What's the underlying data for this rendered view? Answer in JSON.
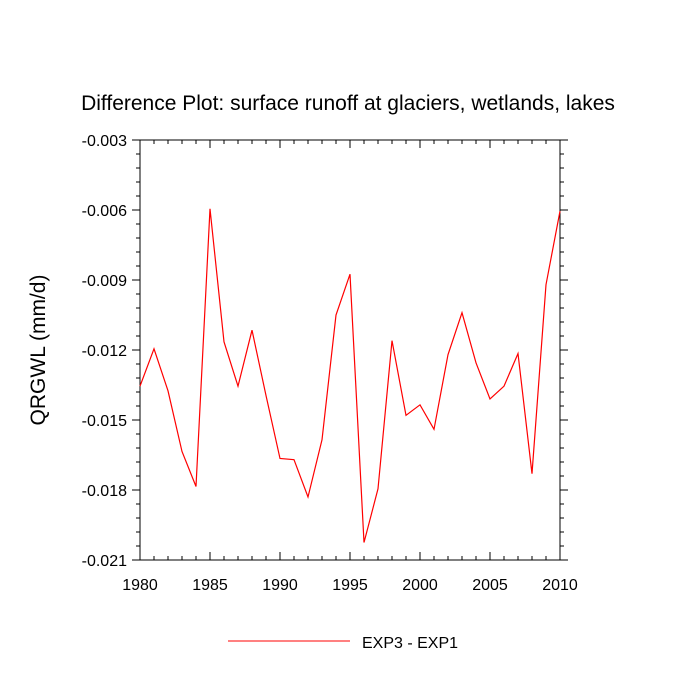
{
  "chart_data": {
    "type": "line",
    "title": "Difference Plot: surface runoff at glaciers, wetlands, lakes",
    "xlabel": "",
    "ylabel": "QRGWL  (mm/d)",
    "xlim": [
      1980,
      2010
    ],
    "ylim": [
      -0.021,
      -0.003
    ],
    "x_ticks": [
      1980,
      1985,
      1990,
      1995,
      2000,
      2005,
      2010
    ],
    "x_tick_labels": [
      "1980",
      "1985",
      "1990",
      "1995",
      "2000",
      "2005",
      "2010"
    ],
    "y_ticks": [
      -0.021,
      -0.018,
      -0.015,
      -0.012,
      -0.009,
      -0.006,
      -0.003
    ],
    "y_tick_labels": [
      "-0.021",
      "-0.018",
      "-0.015",
      "-0.012",
      "-0.009",
      "-0.006",
      "-0.003"
    ],
    "grid": false,
    "legend_position": "bottom-center",
    "x": [
      1980,
      1981,
      1982,
      1983,
      1984,
      1985,
      1986,
      1987,
      1988,
      1989,
      1990,
      1991,
      1992,
      1993,
      1994,
      1995,
      1996,
      1997,
      1998,
      1999,
      2000,
      2001,
      2002,
      2003,
      2004,
      2005,
      2006,
      2007,
      2008,
      2009,
      2010
    ],
    "series": [
      {
        "name": "EXP3 - EXP1",
        "color": "#ff0000",
        "values": [
          -0.01355,
          -0.01195,
          -0.01375,
          -0.01635,
          -0.01785,
          -0.00595,
          -0.01165,
          -0.01355,
          -0.01115,
          -0.01395,
          -0.01665,
          -0.0167,
          -0.0183,
          -0.01585,
          -0.0105,
          -0.00875,
          -0.02025,
          -0.01795,
          -0.0116,
          -0.0148,
          -0.01435,
          -0.0154,
          -0.0122,
          -0.0104,
          -0.01255,
          -0.0141,
          -0.01355,
          -0.01215,
          -0.0173,
          -0.0092,
          -0.00605
        ]
      }
    ]
  }
}
